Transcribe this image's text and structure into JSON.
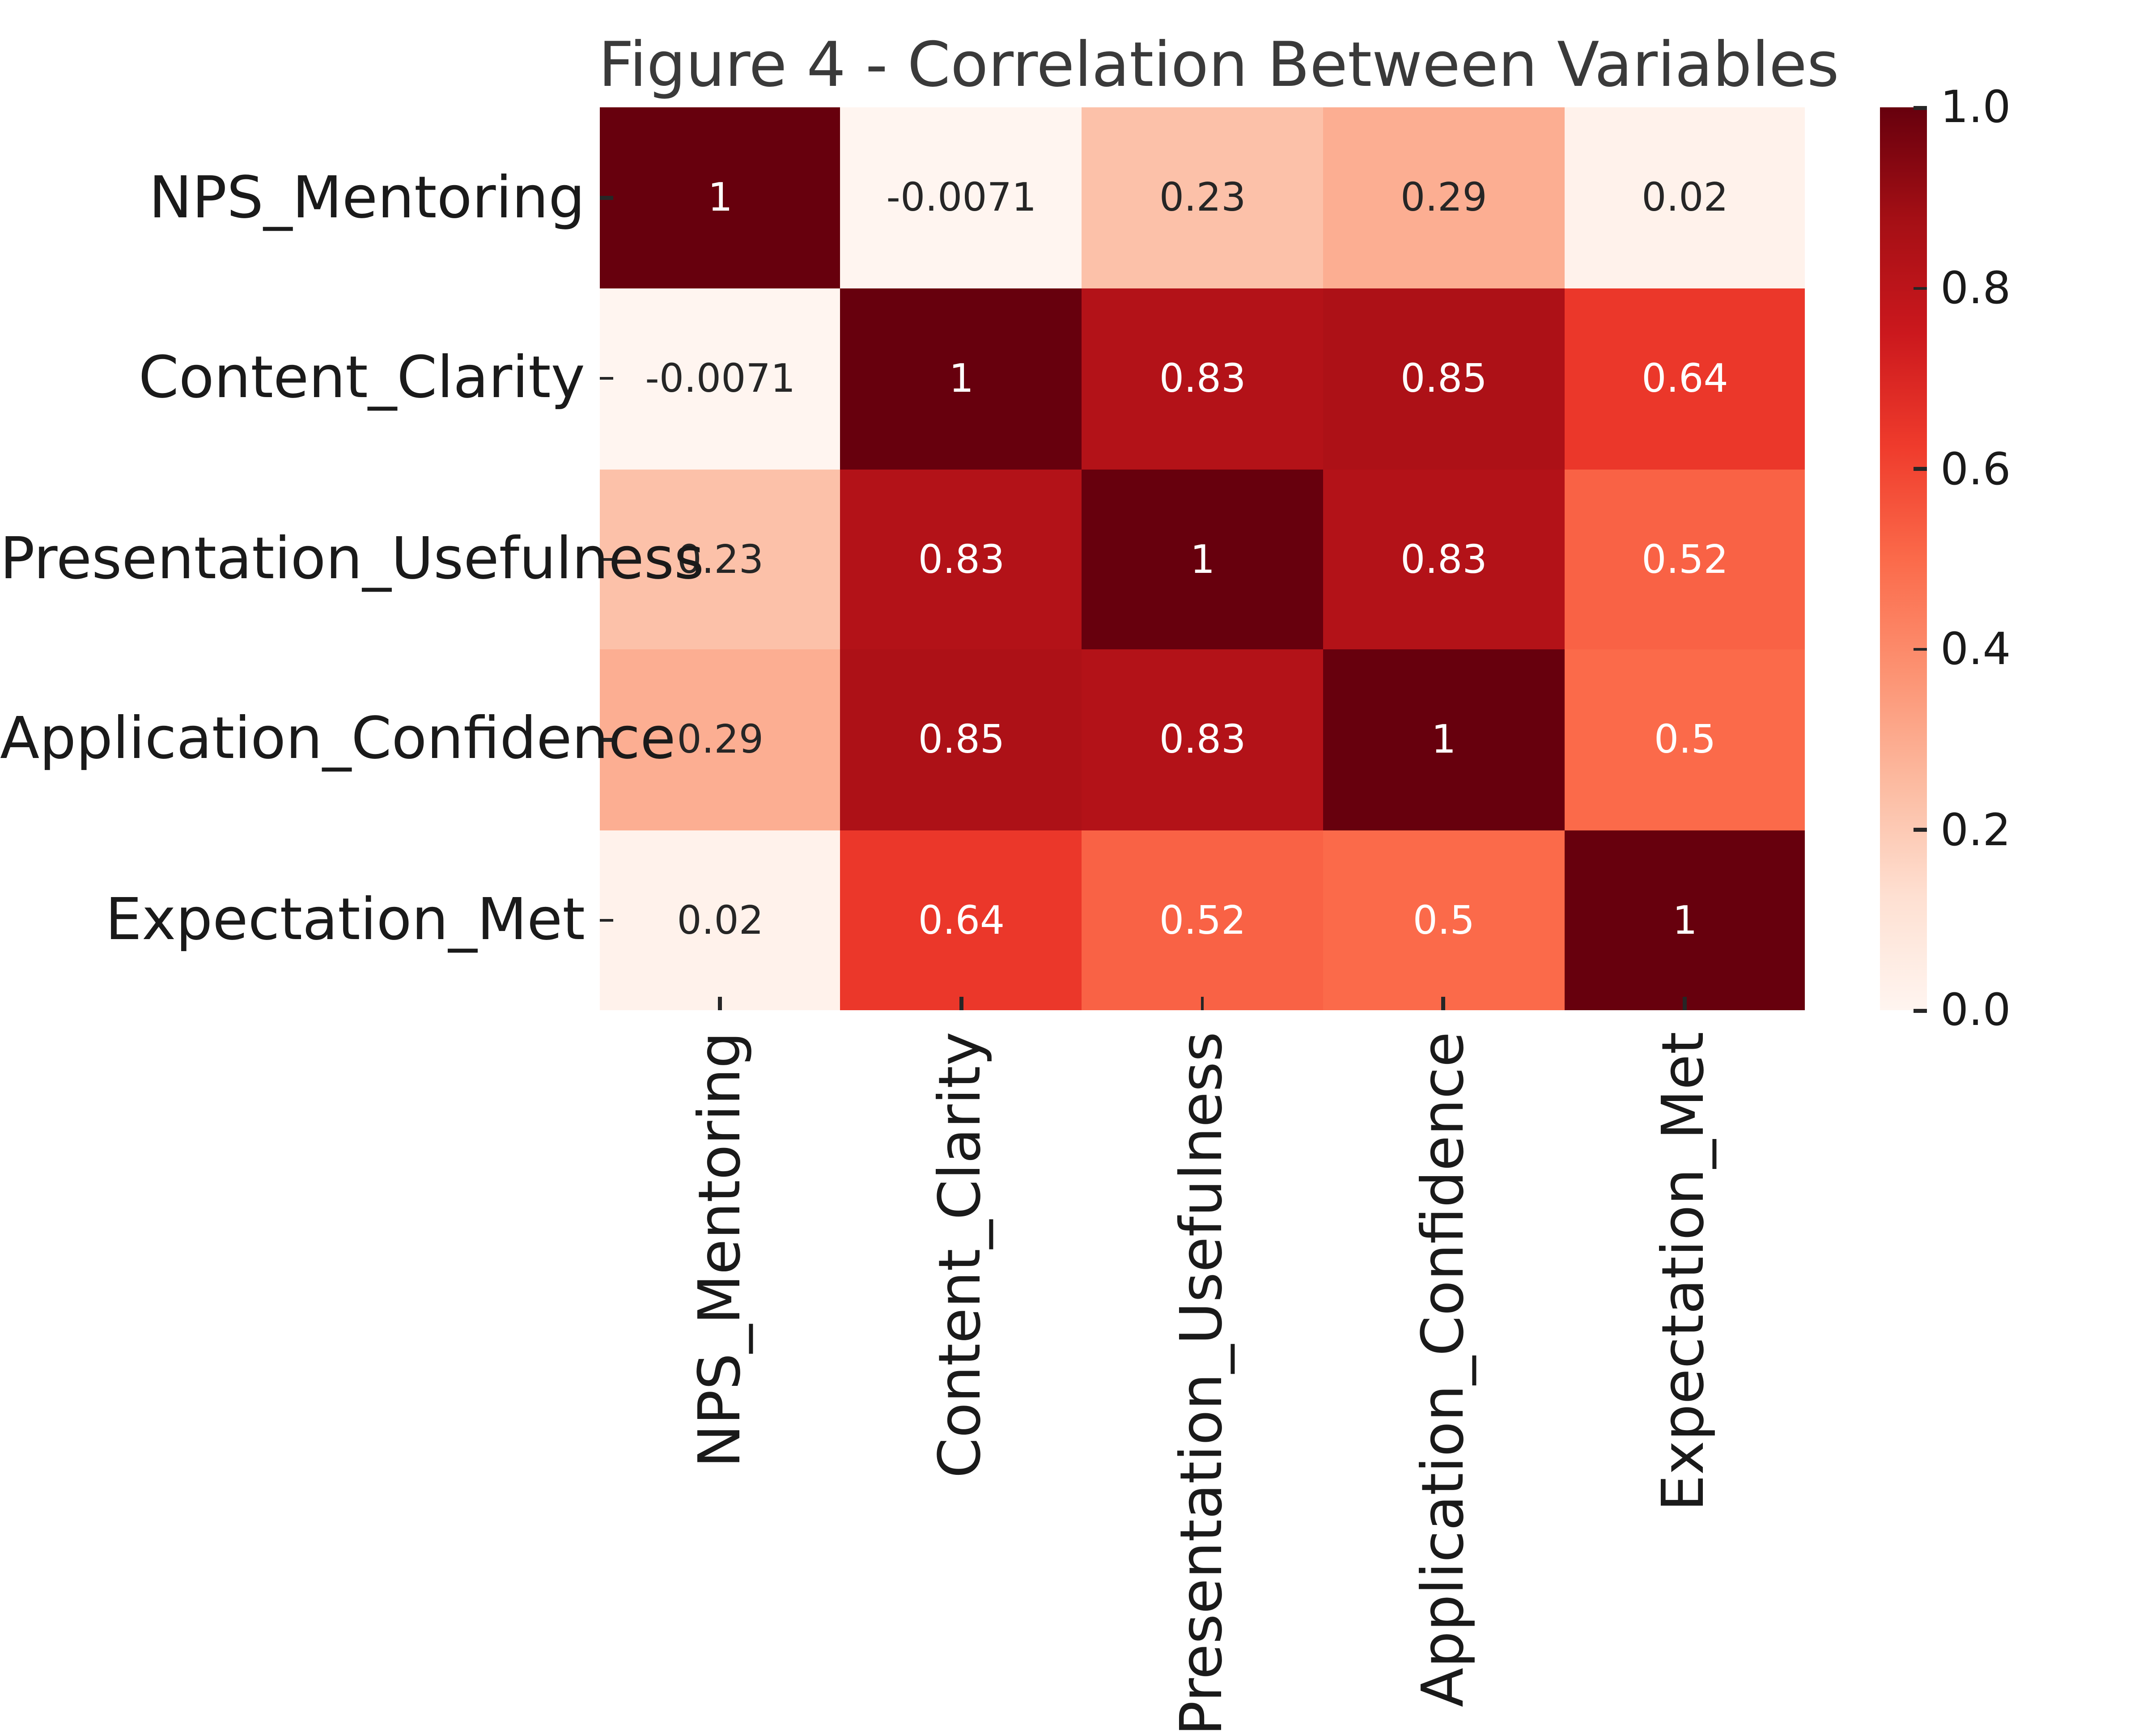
{
  "chart_data": {
    "type": "heatmap",
    "title": "Figure 4 - Correlation Between Variables",
    "variables": [
      "NPS_Mentoring",
      "Content_Clarity",
      "Presentation_Usefulness",
      "Application_Confidence",
      "Expectation_Met"
    ],
    "matrix": [
      [
        1,
        -0.0071,
        0.23,
        0.29,
        0.02
      ],
      [
        -0.0071,
        1,
        0.83,
        0.85,
        0.64
      ],
      [
        0.23,
        0.83,
        1,
        0.83,
        0.52
      ],
      [
        0.29,
        0.85,
        0.83,
        1,
        0.5
      ],
      [
        0.02,
        0.64,
        0.52,
        0.5,
        1
      ]
    ],
    "cell_labels": [
      [
        "1",
        "-0.0071",
        "0.23",
        "0.29",
        "0.02"
      ],
      [
        "-0.0071",
        "1",
        "0.83",
        "0.85",
        "0.64"
      ],
      [
        "0.23",
        "0.83",
        "1",
        "0.83",
        "0.52"
      ],
      [
        "0.29",
        "0.85",
        "0.83",
        "1",
        "0.5"
      ],
      [
        "0.02",
        "0.64",
        "0.52",
        "0.5",
        "1"
      ]
    ],
    "colormap": {
      "name": "Reds",
      "stops": [
        "#fff5f0",
        "#fee0d2",
        "#fcbba1",
        "#fc9272",
        "#fb6a4a",
        "#ef3b2c",
        "#cb181d",
        "#a50f15",
        "#67000d"
      ]
    },
    "colorbar": {
      "vmin": 0,
      "vmax": 1,
      "tick_labels": [
        "1.0",
        "0.8",
        "0.6",
        "0.4",
        "0.2",
        "0.0"
      ],
      "tick_values": [
        1.0,
        0.8,
        0.6,
        0.4,
        0.2,
        0.0
      ]
    },
    "colors": {
      "annotation_dark": "#262626",
      "annotation_light": "#ffffff",
      "tick_color": "#262626",
      "axis_label_color": "#1a1a1a",
      "title_color": "#3a3a3a",
      "background": "#ffffff"
    },
    "legend_position": "right",
    "grid": false
  }
}
